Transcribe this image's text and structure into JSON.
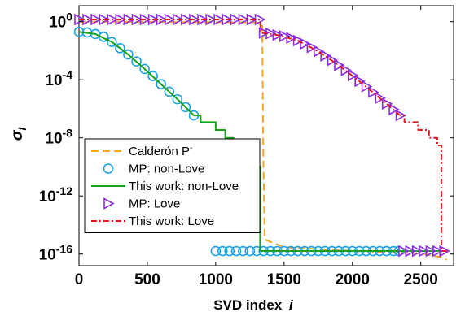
{
  "chart_data": {
    "type": "line",
    "xlabel": "SVD index",
    "xlabel_var": "i",
    "ylabel_var": "σ",
    "ylabel_sub": "i",
    "xlim": [
      0,
      2740
    ],
    "ylim_log10": [
      -16.8,
      1.1
    ],
    "y_scale": "log",
    "x_ticks": [
      0,
      500,
      1000,
      1500,
      2000,
      2500
    ],
    "y_tick_labels": [
      {
        "base": "10",
        "exp": "0",
        "value": 1
      },
      {
        "base": "10",
        "exp": "-4",
        "value": 0.0001
      },
      {
        "base": "10",
        "exp": "-8",
        "value": 1e-08
      },
      {
        "base": "10",
        "exp": "-12",
        "value": 1e-12
      },
      {
        "base": "10",
        "exp": "-16",
        "value": 1e-16
      }
    ],
    "grid": false,
    "legend_position": "bottom-left",
    "series": [
      {
        "name": "Calderón P",
        "name_sup": "-",
        "color": "#f5a623",
        "style": "dashed",
        "marker": "none",
        "points": [
          [
            0,
            1.0
          ],
          [
            1300,
            0.9
          ],
          [
            1340,
            0.5
          ],
          [
            1348,
            1e-09
          ],
          [
            1358,
            1e-15
          ],
          [
            1500,
            3e-16
          ],
          [
            2000,
            1.6e-16
          ],
          [
            2500,
            1.1e-16
          ],
          [
            2650,
            6e-17
          ],
          [
            2690,
            4e-17
          ]
        ]
      },
      {
        "name": "MP: non-Love",
        "color": "#1ba1e2",
        "style": "none",
        "marker": "circle",
        "points": [
          [
            0,
            0.2
          ],
          [
            60,
            0.18
          ],
          [
            120,
            0.14
          ],
          [
            180,
            0.09
          ],
          [
            240,
            0.04
          ],
          [
            300,
            0.015
          ],
          [
            360,
            0.0055
          ],
          [
            420,
            0.0018
          ],
          [
            480,
            0.00055
          ],
          [
            540,
            0.00018
          ],
          [
            600,
            5e-05
          ],
          [
            660,
            1.5e-05
          ],
          [
            720,
            4.5e-06
          ],
          [
            780,
            1.3e-06
          ],
          [
            840,
            3.5e-07
          ],
          [
            1000,
            1.6e-16
          ],
          [
            1050,
            1.6e-16
          ],
          [
            1100,
            1.6e-16
          ],
          [
            1150,
            1.6e-16
          ],
          [
            1200,
            1.6e-16
          ],
          [
            1250,
            1.6e-16
          ],
          [
            1300,
            1.6e-16
          ],
          [
            1350,
            1.6e-16
          ],
          [
            1400,
            1.6e-16
          ],
          [
            1450,
            1.6e-16
          ],
          [
            1500,
            1.6e-16
          ],
          [
            1550,
            1.6e-16
          ],
          [
            1600,
            1.6e-16
          ],
          [
            1650,
            1.6e-16
          ],
          [
            1700,
            1.6e-16
          ],
          [
            1750,
            1.6e-16
          ],
          [
            1800,
            1.6e-16
          ],
          [
            1850,
            1.6e-16
          ],
          [
            1900,
            1.6e-16
          ],
          [
            1950,
            1.6e-16
          ],
          [
            2000,
            1.6e-16
          ],
          [
            2050,
            1.6e-16
          ],
          [
            2100,
            1.6e-16
          ],
          [
            2150,
            1.6e-16
          ],
          [
            2200,
            1.6e-16
          ],
          [
            2250,
            1.6e-16
          ],
          [
            2300,
            1.6e-16
          ],
          [
            2340,
            1.6e-16
          ]
        ]
      },
      {
        "name": "This work: non-Love",
        "color": "#1aa01a",
        "style": "solid",
        "marker": "none",
        "points": [
          [
            0,
            0.2
          ],
          [
            120,
            0.14
          ],
          [
            240,
            0.04
          ],
          [
            360,
            0.0055
          ],
          [
            480,
            0.00055
          ],
          [
            600,
            5e-05
          ],
          [
            720,
            4.5e-06
          ],
          [
            840,
            3.5e-07
          ],
          [
            890,
            3.5e-07
          ],
          [
            890,
            1.2e-07
          ],
          [
            1000,
            1.2e-07
          ],
          [
            1000,
            3.5e-08
          ],
          [
            1070,
            3.5e-08
          ],
          [
            1070,
            1e-08
          ],
          [
            1130,
            1e-08
          ],
          [
            1130,
            3.5e-09
          ],
          [
            1210,
            3.5e-09
          ],
          [
            1210,
            1.2e-09
          ],
          [
            1260,
            1.2e-09
          ],
          [
            1260,
            6e-10
          ],
          [
            1305,
            6e-10
          ],
          [
            1305,
            1.1e-10
          ],
          [
            1325,
            1.1e-10
          ],
          [
            1325,
            1.6e-16
          ],
          [
            2690,
            1.6e-16
          ]
        ]
      },
      {
        "name": "MP: Love",
        "color": "#8a2be2",
        "style": "none",
        "marker": "triangle-right",
        "points": [
          [
            0,
            1.4
          ],
          [
            60,
            1.4
          ],
          [
            120,
            1.4
          ],
          [
            180,
            1.4
          ],
          [
            240,
            1.4
          ],
          [
            300,
            1.4
          ],
          [
            360,
            1.4
          ],
          [
            420,
            1.4
          ],
          [
            480,
            1.4
          ],
          [
            540,
            1.4
          ],
          [
            600,
            1.4
          ],
          [
            660,
            1.4
          ],
          [
            720,
            1.4
          ],
          [
            780,
            1.4
          ],
          [
            840,
            1.4
          ],
          [
            900,
            1.4
          ],
          [
            960,
            1.4
          ],
          [
            1020,
            1.4
          ],
          [
            1080,
            1.4
          ],
          [
            1140,
            1.4
          ],
          [
            1200,
            1.4
          ],
          [
            1260,
            1.4
          ],
          [
            1320,
            1.4
          ],
          [
            1350,
            0.17
          ],
          [
            1400,
            0.15
          ],
          [
            1450,
            0.12
          ],
          [
            1500,
            0.1
          ],
          [
            1550,
            0.075
          ],
          [
            1600,
            0.05
          ],
          [
            1650,
            0.03
          ],
          [
            1700,
            0.017
          ],
          [
            1750,
            0.009
          ],
          [
            1800,
            0.0045
          ],
          [
            1850,
            0.0022
          ],
          [
            1900,
            0.001
          ],
          [
            1950,
            0.00045
          ],
          [
            2000,
            0.0002
          ],
          [
            2050,
            8e-05
          ],
          [
            2100,
            3.5e-05
          ],
          [
            2150,
            1.4e-05
          ],
          [
            2200,
            5.5e-06
          ],
          [
            2250,
            2.2e-06
          ],
          [
            2300,
            9e-07
          ],
          [
            2350,
            3.5e-07
          ],
          [
            2370,
            1.6e-16
          ],
          [
            2420,
            1.6e-16
          ],
          [
            2470,
            1.6e-16
          ],
          [
            2520,
            1.6e-16
          ],
          [
            2570,
            1.6e-16
          ],
          [
            2620,
            1.6e-16
          ],
          [
            2670,
            1.6e-16
          ]
        ]
      },
      {
        "name": "This work: Love",
        "color": "#e0191c",
        "style": "dashdot",
        "marker": "none",
        "points": [
          [
            0,
            1.4
          ],
          [
            1325,
            1.4
          ],
          [
            1330,
            0.17
          ],
          [
            1450,
            0.12
          ],
          [
            1600,
            0.05
          ],
          [
            1750,
            0.009
          ],
          [
            1900,
            0.001
          ],
          [
            2050,
            8e-05
          ],
          [
            2200,
            5.5e-06
          ],
          [
            2350,
            3.5e-07
          ],
          [
            2380,
            3.5e-07
          ],
          [
            2380,
            1.2e-07
          ],
          [
            2480,
            1.2e-07
          ],
          [
            2480,
            3.5e-08
          ],
          [
            2560,
            3.5e-08
          ],
          [
            2560,
            1e-08
          ],
          [
            2620,
            1e-08
          ],
          [
            2620,
            3e-09
          ],
          [
            2650,
            3e-09
          ],
          [
            2650,
            1.6e-16
          ],
          [
            2690,
            1.6e-16
          ]
        ]
      }
    ]
  }
}
